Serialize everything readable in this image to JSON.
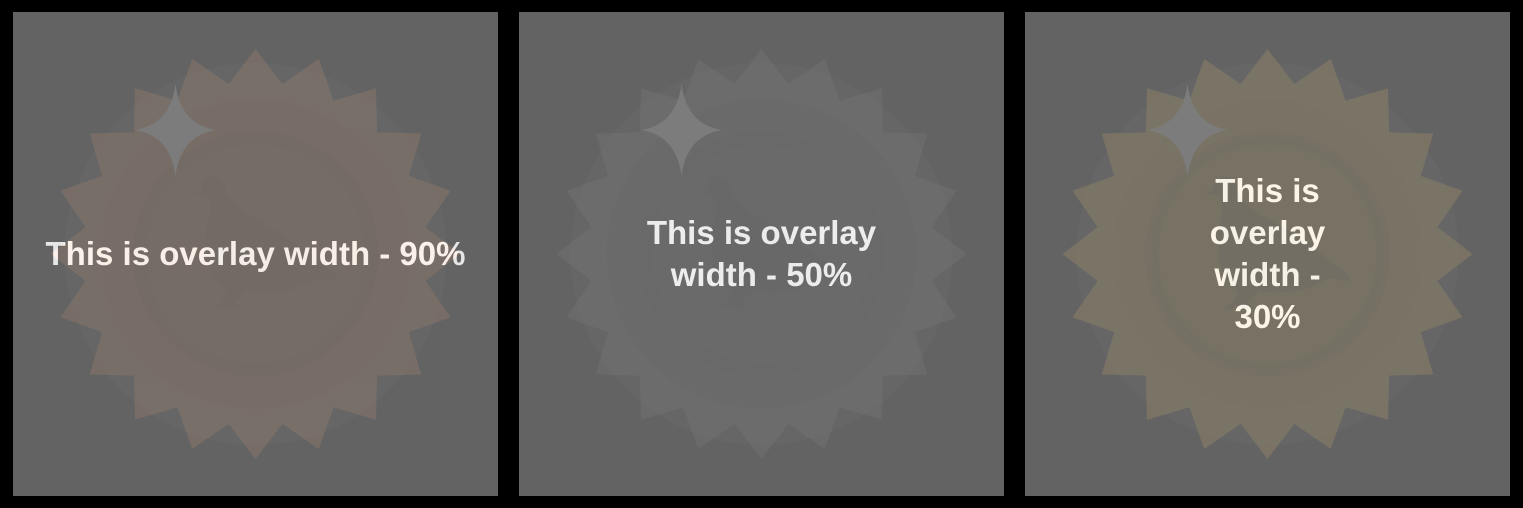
{
  "cards": [
    {
      "overlay_text": "This is overlay width - 90%",
      "overlay_width_percent": 90,
      "badge_color": "#d0661f",
      "badge_icon": "pigeon-icon"
    },
    {
      "overlay_text": "This is overlay width - 50%",
      "overlay_width_percent": 50,
      "badge_color": "#4d4d4d",
      "badge_icon": "pigeon-icon"
    },
    {
      "overlay_text": "This is overlay width - 30%",
      "overlay_width_percent": 30,
      "badge_color": "#e6a214",
      "badge_icon": "pigeon-icon"
    }
  ],
  "overlay_color": "#6e6e6e"
}
